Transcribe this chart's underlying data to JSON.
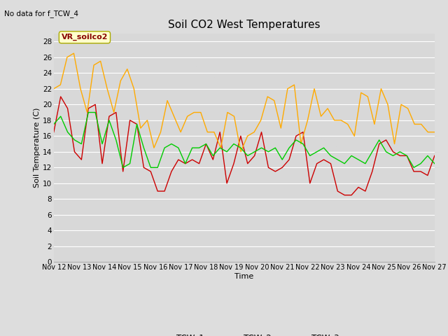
{
  "title": "Soil CO2 West Temperatures",
  "subtitle": "No data for f_TCW_4",
  "xlabel": "Time",
  "ylabel": "Soil Temperature (C)",
  "ylim": [
    0,
    29
  ],
  "yticks": [
    0,
    2,
    4,
    6,
    8,
    10,
    12,
    14,
    16,
    18,
    20,
    22,
    24,
    26,
    28
  ],
  "xlabels": [
    "Nov 12",
    "Nov 13",
    "Nov 14",
    "Nov 15",
    "Nov 16",
    "Nov 17",
    "Nov 18",
    "Nov 19",
    "Nov 20",
    "Nov 21",
    "Nov 22",
    "Nov 23",
    "Nov 24",
    "Nov 25",
    "Nov 26",
    "Nov 27"
  ],
  "background_color": "#dddddd",
  "plot_bg_color": "#d8d8d8",
  "grid_color": "#ffffff",
  "annotation_text": "VR_soilco2",
  "annotation_bg": "#ffffcc",
  "annotation_border": "#aaaa00",
  "colors": {
    "TCW_1": "#cc0000",
    "TCW_2": "#ffaa00",
    "TCW_3": "#00cc00"
  },
  "TCW_1": [
    16.5,
    21.0,
    19.5,
    14.0,
    13.0,
    19.5,
    20.0,
    12.5,
    18.5,
    19.0,
    11.5,
    18.0,
    17.5,
    12.0,
    11.5,
    9.0,
    9.0,
    11.5,
    13.0,
    12.5,
    13.0,
    12.5,
    15.0,
    13.0,
    16.5,
    10.0,
    12.5,
    16.0,
    12.5,
    13.5,
    16.5,
    12.0,
    11.5,
    12.0,
    13.0,
    16.0,
    16.5,
    10.0,
    12.5,
    13.0,
    12.5,
    9.0,
    8.5,
    8.5,
    9.5,
    9.0,
    11.5,
    15.0,
    15.5,
    14.0,
    13.5,
    13.5,
    11.5,
    11.5,
    11.0,
    13.5
  ],
  "TCW_2": [
    22.0,
    22.5,
    26.0,
    26.5,
    22.0,
    19.0,
    25.0,
    25.5,
    22.0,
    19.0,
    23.0,
    24.5,
    22.0,
    17.0,
    18.0,
    14.5,
    16.5,
    20.5,
    18.5,
    16.5,
    18.5,
    19.0,
    19.0,
    16.5,
    16.5,
    14.5,
    19.0,
    18.5,
    14.0,
    16.0,
    16.5,
    18.0,
    21.0,
    20.5,
    17.0,
    22.0,
    22.5,
    15.0,
    18.0,
    22.0,
    18.5,
    19.5,
    18.0,
    18.0,
    17.5,
    16.0,
    21.5,
    21.0,
    17.5,
    22.0,
    20.0,
    15.0,
    20.0,
    19.5,
    17.5,
    17.5,
    16.5,
    16.5
  ],
  "TCW_3": [
    17.5,
    18.5,
    16.5,
    15.5,
    15.0,
    19.0,
    19.0,
    15.0,
    18.0,
    15.5,
    12.0,
    12.5,
    17.5,
    14.5,
    12.0,
    12.0,
    14.5,
    15.0,
    14.5,
    12.5,
    14.5,
    14.5,
    15.0,
    13.5,
    14.5,
    14.0,
    15.0,
    14.5,
    13.5,
    14.0,
    14.5,
    14.0,
    14.5,
    13.0,
    14.5,
    15.5,
    15.0,
    13.5,
    14.0,
    14.5,
    13.5,
    13.0,
    12.5,
    13.5,
    13.0,
    12.5,
    14.0,
    15.5,
    14.0,
    13.5,
    14.0,
    13.5,
    12.0,
    12.5,
    13.5,
    12.5
  ]
}
